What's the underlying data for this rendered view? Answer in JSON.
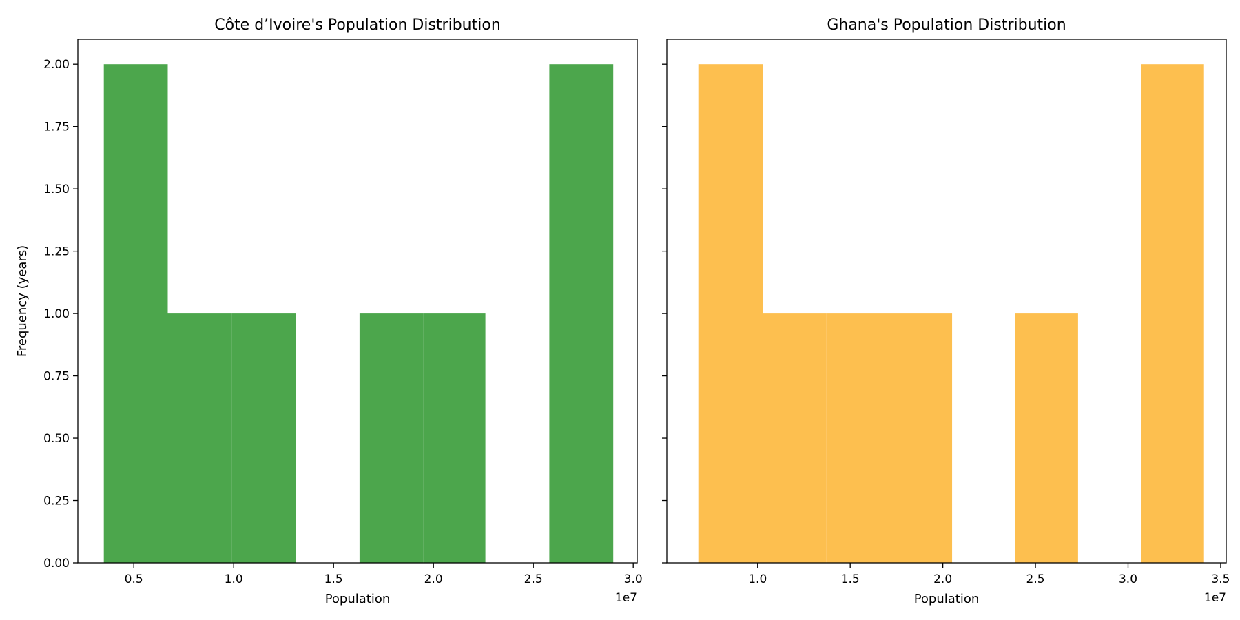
{
  "chart_data": [
    {
      "type": "bar",
      "subtype": "histogram",
      "title": "Côte d’Ivoire's Population Distribution",
      "xlabel": "Population",
      "ylabel": "Frequency (years)",
      "x_offset_label": "1e7",
      "xlim": [
        0.22,
        3.02
      ],
      "ylim": [
        0,
        2.1
      ],
      "xticks": [
        0.5,
        1.0,
        1.5,
        2.0,
        2.5,
        3.0
      ],
      "xtick_labels": [
        "0.5",
        "1.0",
        "1.5",
        "2.0",
        "2.5",
        "3.0"
      ],
      "yticks": [
        0,
        0.25,
        0.5,
        0.75,
        1.0,
        1.25,
        1.5,
        1.75,
        2.0
      ],
      "ytick_labels": [
        "0.00",
        "0.25",
        "0.50",
        "0.75",
        "1.00",
        "1.25",
        "1.50",
        "1.75",
        "2.00"
      ],
      "color": "#4ca64c",
      "bins": [
        {
          "x0": 0.35,
          "x1": 0.67,
          "count": 2
        },
        {
          "x0": 0.67,
          "x1": 0.99,
          "count": 1
        },
        {
          "x0": 0.99,
          "x1": 1.31,
          "count": 1
        },
        {
          "x0": 1.31,
          "x1": 1.63,
          "count": 0
        },
        {
          "x0": 1.63,
          "x1": 1.95,
          "count": 1
        },
        {
          "x0": 1.95,
          "x1": 2.26,
          "count": 1
        },
        {
          "x0": 2.26,
          "x1": 2.58,
          "count": 0
        },
        {
          "x0": 2.58,
          "x1": 2.9,
          "count": 2
        }
      ]
    },
    {
      "type": "bar",
      "subtype": "histogram",
      "title": "Ghana's Population Distribution",
      "xlabel": "Population",
      "ylabel": "",
      "x_offset_label": "1e7",
      "xlim": [
        0.51,
        3.53
      ],
      "ylim": [
        0,
        2.1
      ],
      "xticks": [
        1.0,
        1.5,
        2.0,
        2.5,
        3.0,
        3.5
      ],
      "xtick_labels": [
        "1.0",
        "1.5",
        "2.0",
        "2.5",
        "3.0",
        "3.5"
      ],
      "yticks": [
        0,
        0.25,
        0.5,
        0.75,
        1.0,
        1.25,
        1.5,
        1.75,
        2.0
      ],
      "ytick_labels": [],
      "color": "#fdbf4f",
      "bins": [
        {
          "x0": 0.68,
          "x1": 1.03,
          "count": 2
        },
        {
          "x0": 1.03,
          "x1": 1.37,
          "count": 1
        },
        {
          "x0": 1.37,
          "x1": 1.71,
          "count": 1
        },
        {
          "x0": 1.71,
          "x1": 2.05,
          "count": 1
        },
        {
          "x0": 2.05,
          "x1": 2.39,
          "count": 0
        },
        {
          "x0": 2.39,
          "x1": 2.73,
          "count": 1
        },
        {
          "x0": 2.73,
          "x1": 3.07,
          "count": 0
        },
        {
          "x0": 3.07,
          "x1": 3.41,
          "count": 2
        }
      ]
    }
  ]
}
